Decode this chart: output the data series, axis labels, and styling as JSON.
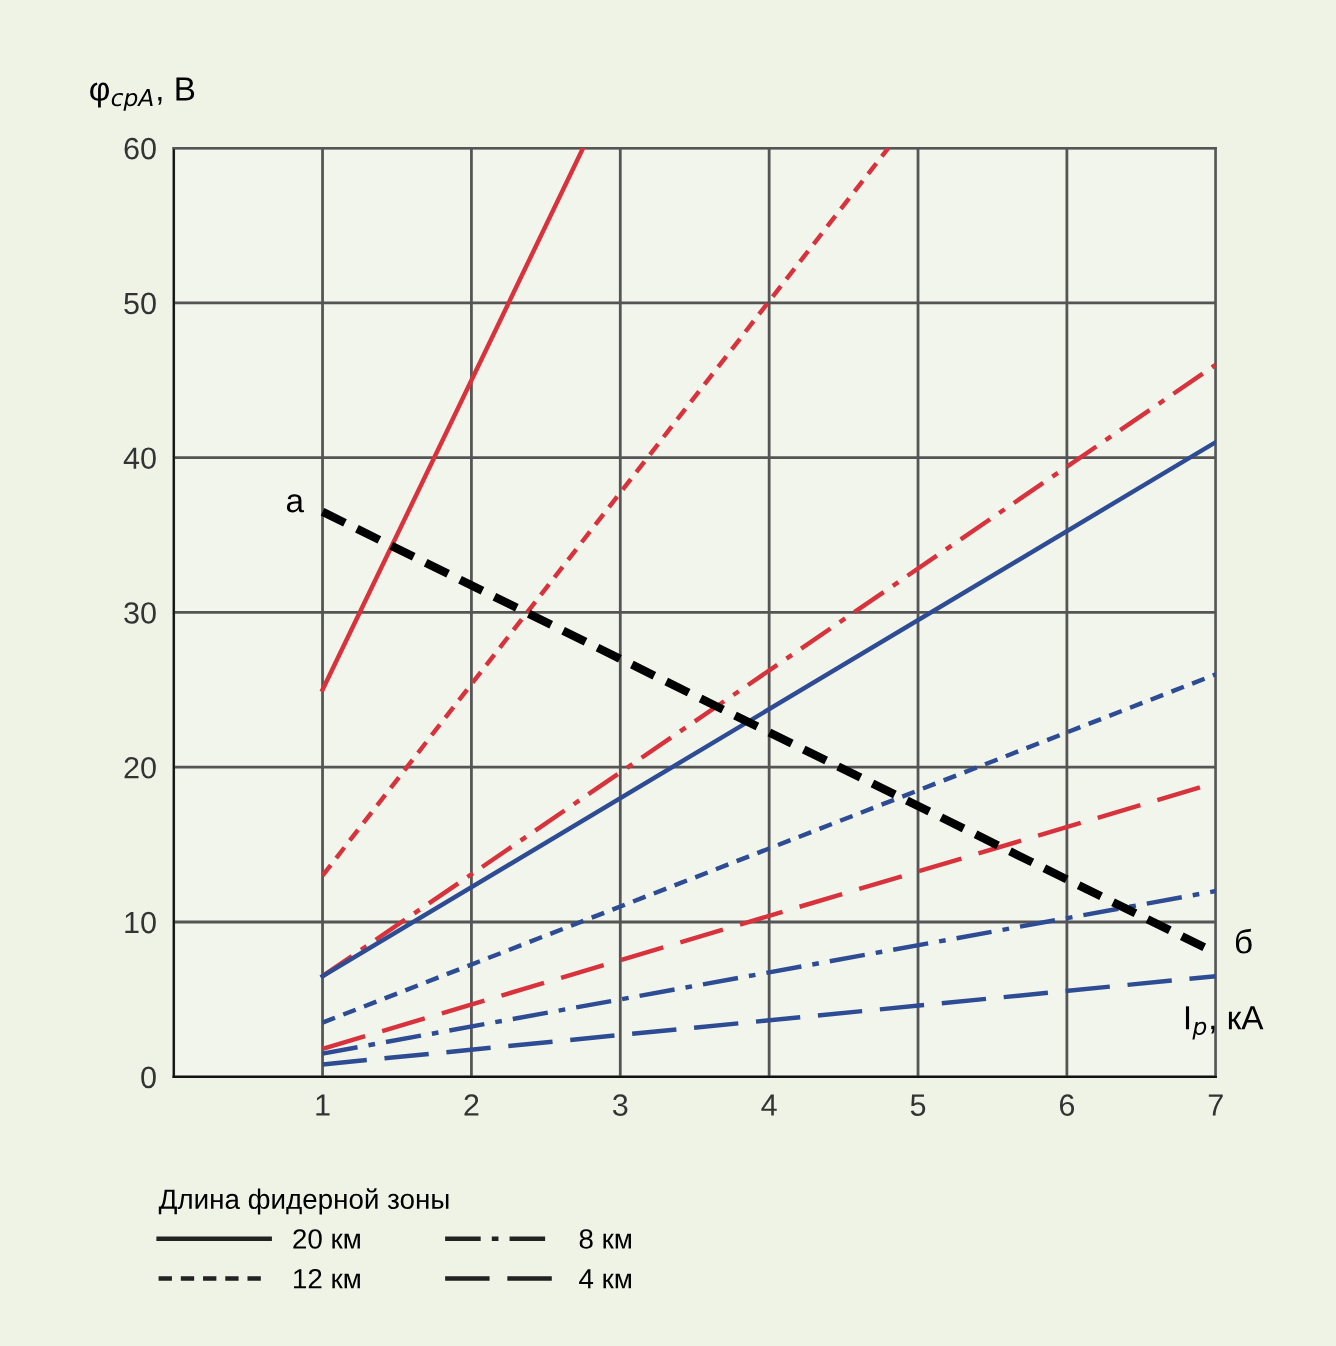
{
  "chart_data": {
    "type": "line",
    "xlabel": "I$_{р}$, кА",
    "ylabel": "φ$_{срА}$, В",
    "legend_title": "Длина фидерной зоны",
    "xlim": [
      0,
      7
    ],
    "ylim": [
      0,
      60
    ],
    "xticks": [
      {
        "value": 0,
        "label": null
      },
      1,
      2,
      3,
      4,
      5,
      6,
      7
    ],
    "yticks": [
      0,
      10,
      20,
      30,
      40,
      50,
      60
    ],
    "grid": true,
    "marker": "none",
    "series": [
      {
        "color": "#d8323c",
        "line_style": "solid",
        "x": [
          1,
          2.75
        ],
        "values": [
          25,
          60
        ]
      },
      {
        "color": "#d8323c",
        "line_style": "dashed",
        "x": [
          1,
          4.8
        ],
        "values": [
          13,
          60
        ]
      },
      {
        "color": "#d8323c",
        "line_style": "dashdot",
        "x": [
          1,
          7
        ],
        "values": [
          6.5,
          46
        ]
      },
      {
        "color": "#d8323c",
        "line_style": "longdash",
        "x": [
          1,
          7
        ],
        "values": [
          1.8,
          19
        ]
      },
      {
        "color": "#2e4c94",
        "line_style": "solid",
        "x": [
          1,
          7
        ],
        "values": [
          6.5,
          41
        ]
      },
      {
        "color": "#2e4c94",
        "line_style": "dashed",
        "x": [
          1,
          7
        ],
        "values": [
          3.5,
          26
        ]
      },
      {
        "color": "#2e4c94",
        "line_style": "dashdot",
        "x": [
          1,
          7
        ],
        "values": [
          1.5,
          12
        ]
      },
      {
        "color": "#2e4c94",
        "line_style": "longdash",
        "x": [
          1,
          7
        ],
        "values": [
          0.8,
          6.5
        ]
      },
      {
        "color": "#000000",
        "line_style": "boldDashed",
        "x": [
          1,
          7
        ],
        "values": [
          36.5,
          8
        ]
      }
    ],
    "annotations": [
      {
        "text": "а",
        "x": 1,
        "y": 36.5
      },
      {
        "text": "б",
        "x": 7,
        "y": 8
      },
      "20 км",
      "12 км",
      "8 км",
      "4 км"
    ]
  }
}
